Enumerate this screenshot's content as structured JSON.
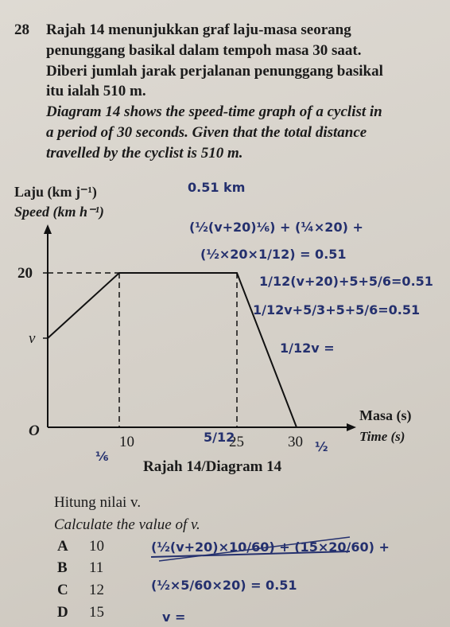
{
  "question_number": "28",
  "malay_text": [
    "Rajah 14 menunjukkan graf laju-masa seorang",
    "penunggang basikal dalam tempoh masa 30 saat.",
    "Diberi jumlah jarak perjalanan penunggang basikal",
    "itu ialah 510 m."
  ],
  "english_text": [
    "Diagram 14 shows the speed-time graph of a cyclist in",
    "a period of 30 seconds. Given that the total distance",
    "travelled by the cyclist is 510 m."
  ],
  "graph": {
    "y_label_ms": "Laju (km j⁻¹)",
    "y_label_en": "Speed (km h⁻¹)",
    "y_tick": "20",
    "v_label": "v",
    "origin": "O",
    "x_ticks": [
      "10",
      "25",
      "30"
    ],
    "x_label_ms": "Masa (s)",
    "x_label_en": "Time (s)",
    "caption": "Rajah 14/Diagram 14"
  },
  "prompt_ms": "Hitung nilai v.",
  "prompt_en": "Calculate the value of v.",
  "options": [
    {
      "letter": "A",
      "text": "10"
    },
    {
      "letter": "B",
      "text": "11"
    },
    {
      "letter": "C",
      "text": "12"
    },
    {
      "letter": "D",
      "text": "15"
    }
  ],
  "handwriting": [
    "0.51 km",
    "(½(v+20)⅙) + (¼×20) +",
    "(½×20×1/12) = 0.51",
    "1/12(v+20)+5+5/6=0.51",
    "1/12v+5/3+5+5/6=0.51",
    "1/12v =",
    "5/12",
    "⅙",
    "½",
    "(½(v+20)×10/60) + (15×20/60) +",
    "(½×5/60×20) = 0.51",
    "v ="
  ]
}
